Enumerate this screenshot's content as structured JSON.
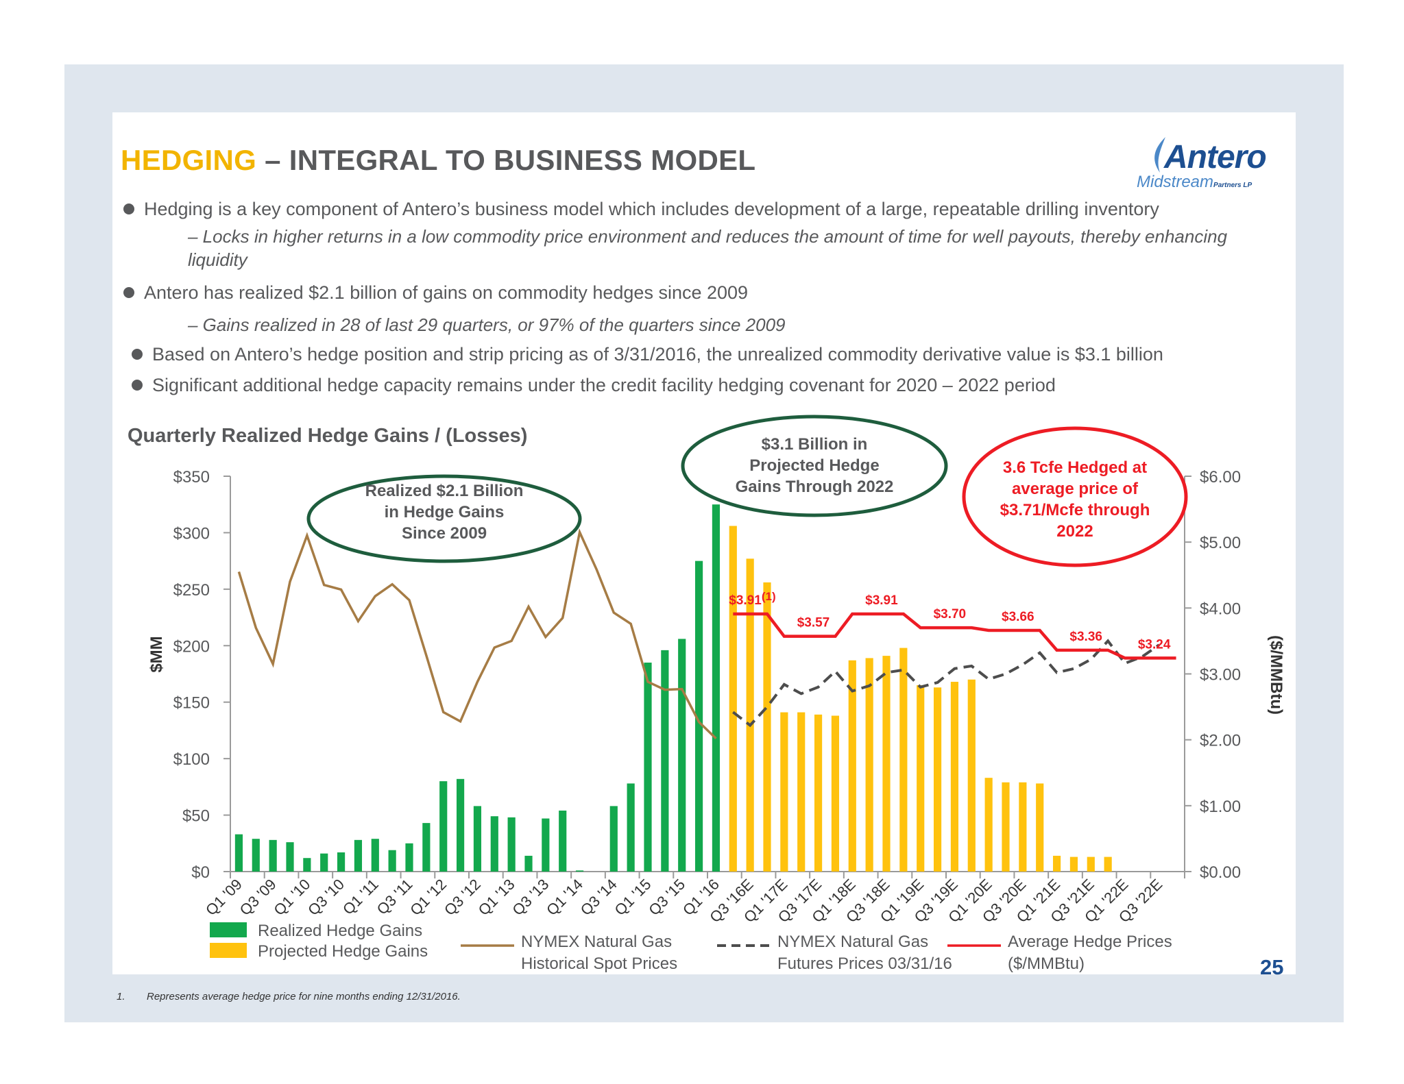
{
  "slide": {
    "title_accent": "HEDGING",
    "title_rest": " – INTEGRAL TO BUSINESS MODEL",
    "page_number": "25",
    "footnote_num": "1.",
    "footnote_text": "Represents average hedge price for nine months ending 12/31/2016."
  },
  "logo": {
    "brand": "Antero",
    "sub": "Midstream",
    "sub2": "Partners LP"
  },
  "bullets": [
    "Hedging is a key component of Antero’s business model which includes development of a large, repeatable drilling inventory",
    "– Locks in higher returns in a low commodity price environment and reduces the amount of time for well payouts, thereby enhancing liquidity",
    "Antero has realized $2.1 billion of gains on commodity hedges since 2009",
    "– Gains realized in 28 of last 29 quarters, or 97% of the quarters since 2009",
    "Based on Antero’s hedge position and strip pricing as of 3/31/2016, the unrealized commodity derivative value is $3.1 billion",
    "Significant additional hedge capacity remains under the credit facility hedging covenant for 2020 – 2022 period"
  ],
  "chart_data": {
    "type": "bar",
    "title": "Quarterly Realized Hedge Gains / (Losses)",
    "ylabel": "$MM",
    "y2label": "($/MMBtu)",
    "ylim": [
      0,
      350
    ],
    "y2lim": [
      0,
      6
    ],
    "yticks": [
      "$0",
      "$50",
      "$100",
      "$150",
      "$200",
      "$250",
      "$300",
      "$350"
    ],
    "y2ticks": [
      "$0.00",
      "$1.00",
      "$2.00",
      "$3.00",
      "$4.00",
      "$5.00",
      "$6.00"
    ],
    "categories": [
      "Q1 '09",
      "Q2 '09",
      "Q3 '09",
      "Q4 '09",
      "Q1 '10",
      "Q2 '10",
      "Q3 '10",
      "Q4 '10",
      "Q1 '11",
      "Q2 '11",
      "Q3 '11",
      "Q4 '11",
      "Q1 '12",
      "Q2 '12",
      "Q3 '12",
      "Q4 '12",
      "Q1 '13",
      "Q2 '13",
      "Q3 '13",
      "Q4 '13",
      "Q1 '14",
      "Q2 '14",
      "Q3 '14",
      "Q4 '14",
      "Q1 '15",
      "Q2 '15",
      "Q3 '15",
      "Q4 '15",
      "Q1 '16",
      "Q2 '16E",
      "Q3 '16E",
      "Q4 '16E",
      "Q1 '17E",
      "Q2 '17E",
      "Q3 '17E",
      "Q4 '17E",
      "Q1 '18E",
      "Q2 '18E",
      "Q3 '18E",
      "Q4 '18E",
      "Q1 '19E",
      "Q2 '19E",
      "Q3 '19E",
      "Q4 '19E",
      "Q1 '20E",
      "Q2 '20E",
      "Q3 '20E",
      "Q4 '20E",
      "Q1 '21E",
      "Q2 '21E",
      "Q3 '21E",
      "Q4 '21E",
      "Q1 '22E",
      "Q2 '22E",
      "Q3 '22E",
      "Q4 '22E"
    ],
    "xtick_labels": [
      "Q1 '09",
      "Q3 '09",
      "Q1 '10",
      "Q3 '10",
      "Q1 '11",
      "Q3 '11",
      "Q1 '12",
      "Q3 '12",
      "Q1 '13",
      "Q3 '13",
      "Q1 '14",
      "Q3 '14",
      "Q1 '15",
      "Q3 '15",
      "Q1 '16",
      "Q3 '16E",
      "Q1 '17E",
      "Q3 '17E",
      "Q1 '18E",
      "Q3 '18E",
      "Q1 '19E",
      "Q3 '19E",
      "Q1 '20E",
      "Q3 '20E",
      "Q1 '21E",
      "Q3 '21E",
      "Q1 '22E",
      "Q3 '22E"
    ],
    "series": [
      {
        "name": "Realized Hedge Gains",
        "color": "#13a84d",
        "values": [
          33,
          29,
          28,
          26,
          12,
          16,
          17,
          28,
          29,
          19,
          25,
          43,
          80,
          82,
          58,
          49,
          48,
          14,
          47,
          54,
          1,
          0,
          58,
          78,
          185,
          196,
          206,
          275,
          325,
          null,
          null,
          null,
          null,
          null,
          null,
          null,
          null,
          null,
          null,
          null,
          null,
          null,
          null,
          null,
          null,
          null,
          null,
          null,
          null,
          null,
          null,
          null,
          null,
          null,
          null,
          null
        ]
      },
      {
        "name": "Projected Hedge Gains",
        "color": "#ffc20e",
        "values": [
          null,
          null,
          null,
          null,
          null,
          null,
          null,
          null,
          null,
          null,
          null,
          null,
          null,
          null,
          null,
          null,
          null,
          null,
          null,
          null,
          null,
          null,
          null,
          null,
          null,
          null,
          null,
          null,
          null,
          306,
          277,
          256,
          141,
          141,
          139,
          138,
          187,
          189,
          191,
          198,
          165,
          163,
          168,
          170,
          83,
          79,
          79,
          78,
          14,
          13,
          13,
          13,
          0,
          0,
          0,
          0
        ]
      },
      {
        "name": "NYMEX Natural Gas Historical Spot Prices",
        "color": "#a67c45",
        "values": [
          4.55,
          3.7,
          3.15,
          4.4,
          5.1,
          4.35,
          4.28,
          3.8,
          4.18,
          4.36,
          4.12,
          3.28,
          2.42,
          2.28,
          2.88,
          3.4,
          3.5,
          4.02,
          3.56,
          3.85,
          5.15,
          4.58,
          3.93,
          3.76,
          2.88,
          2.76,
          2.77,
          2.27,
          2.02,
          null,
          null,
          null,
          null,
          null,
          null,
          null,
          null,
          null,
          null,
          null,
          null,
          null,
          null,
          null,
          null,
          null,
          null,
          null,
          null,
          null,
          null,
          null,
          null,
          null,
          null,
          null
        ]
      },
      {
        "name": "NYMEX Natural Gas Futures Prices 03/31/16",
        "color": "#4d4d4d",
        "values": [
          null,
          null,
          null,
          null,
          null,
          null,
          null,
          null,
          null,
          null,
          null,
          null,
          null,
          null,
          null,
          null,
          null,
          null,
          null,
          null,
          null,
          null,
          null,
          null,
          null,
          null,
          null,
          null,
          null,
          2.42,
          2.22,
          2.5,
          2.84,
          2.7,
          2.8,
          3.04,
          2.74,
          2.82,
          3.02,
          3.06,
          2.8,
          2.87,
          3.08,
          3.12,
          2.92,
          3.0,
          3.14,
          3.32,
          3.02,
          3.08,
          3.22,
          3.5,
          3.16,
          3.26,
          3.44,
          null
        ]
      },
      {
        "name": "Average Hedge Prices ($/MMBtu)",
        "color": "#ed1c24",
        "values": [
          null,
          null,
          null,
          null,
          null,
          null,
          null,
          null,
          null,
          null,
          null,
          null,
          null,
          null,
          null,
          null,
          null,
          null,
          null,
          null,
          null,
          null,
          null,
          null,
          null,
          null,
          null,
          null,
          null,
          3.91,
          3.91,
          3.91,
          3.57,
          3.57,
          3.57,
          3.57,
          3.91,
          3.91,
          3.91,
          3.91,
          3.7,
          3.7,
          3.7,
          3.7,
          3.66,
          3.66,
          3.66,
          3.66,
          3.36,
          3.36,
          3.36,
          3.36,
          3.24,
          3.24,
          3.24,
          3.24
        ]
      }
    ],
    "price_labels": [
      {
        "text": "$3.91",
        "sup": "(1)",
        "q": 29,
        "v": 3.91
      },
      {
        "text": "$3.57",
        "q": 33,
        "v": 3.57
      },
      {
        "text": "$3.91",
        "q": 37,
        "v": 3.91
      },
      {
        "text": "$3.70",
        "q": 41,
        "v": 3.7
      },
      {
        "text": "$3.66",
        "q": 45,
        "v": 3.66
      },
      {
        "text": "$3.36",
        "q": 49,
        "v": 3.36
      },
      {
        "text": "$3.24",
        "q": 53,
        "v": 3.24
      }
    ],
    "callouts": [
      {
        "id": "realized",
        "lines": [
          "Realized $2.1 Billion",
          "in Hedge Gains",
          "Since 2009"
        ],
        "color": "#1e5d3d",
        "text_color": "#58595b"
      },
      {
        "id": "projected",
        "lines": [
          "$3.1 Billion in",
          "Projected Hedge",
          "Gains Through 2022"
        ],
        "color": "#1e5d3d",
        "text_color": "#58595b"
      },
      {
        "id": "hedged",
        "lines": [
          "3.6 Tcfe Hedged at",
          "average price of",
          "$3.71/Mcfe  through",
          "2022"
        ],
        "color": "#ed1c24",
        "text_color": "#ed1c24"
      }
    ],
    "legend": [
      {
        "kind": "box",
        "color": "#13a84d",
        "lines": [
          "Realized Hedge Gains"
        ]
      },
      {
        "kind": "box",
        "color": "#ffc20e",
        "lines": [
          "Projected Hedge Gains"
        ]
      },
      {
        "kind": "line",
        "color": "#a67c45",
        "lines": [
          "NYMEX Natural Gas",
          "Historical Spot Prices"
        ]
      },
      {
        "kind": "dash",
        "color": "#4d4d4d",
        "lines": [
          "NYMEX Natural Gas",
          "Futures Prices 03/31/16"
        ]
      },
      {
        "kind": "line",
        "color": "#ed1c24",
        "lines": [
          "Average Hedge Prices",
          "($/MMBtu)"
        ]
      }
    ]
  }
}
